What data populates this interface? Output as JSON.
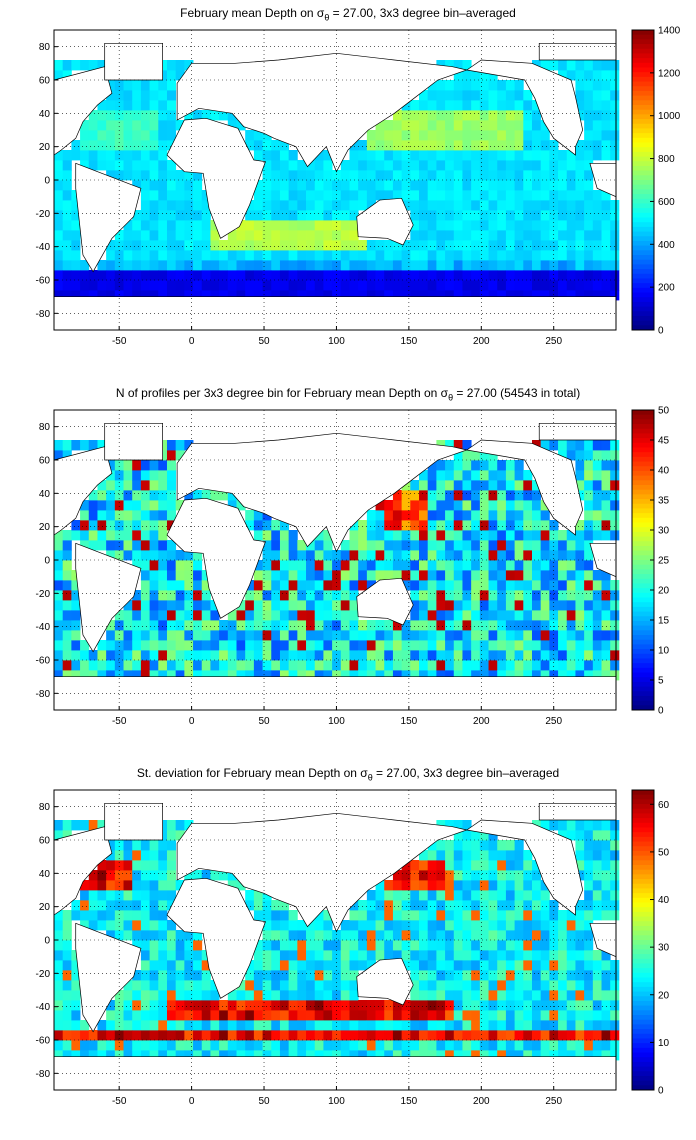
{
  "panels": [
    {
      "title": "February mean Depth on",
      "title_suffix": " = 27.00, 3x3 degree bin–averaged",
      "sigma": "σ",
      "sigma_sub": "θ"
    },
    {
      "title": "N of profiles per 3x3 degree bin for February mean Depth on",
      "title_suffix": " = 27.00 (54543 in total)",
      "sigma": "σ",
      "sigma_sub": "θ"
    },
    {
      "title": "St. deviation for February mean Depth on",
      "title_suffix": " = 27.00, 3x3 degree bin–averaged",
      "sigma": "σ",
      "sigma_sub": "θ"
    }
  ],
  "chart_data": [
    {
      "type": "heatmap",
      "title": "February mean Depth on σθ = 27.00, 3x3 degree bin–averaged",
      "xlim": [
        -95,
        293
      ],
      "ylim": [
        -90,
        90
      ],
      "x_ticks": [
        -50,
        0,
        50,
        100,
        150,
        200,
        250
      ],
      "y_ticks": [
        80,
        60,
        40,
        20,
        0,
        -20,
        -40,
        -60,
        -80
      ],
      "colorbar": {
        "min": 0,
        "max": 1400,
        "ticks": [
          1400,
          1200,
          1000,
          800,
          600,
          400,
          200,
          0
        ]
      },
      "colormap": "jet",
      "grid": true,
      "bin_size_deg": 3
    },
    {
      "type": "heatmap",
      "title": "N of profiles per 3x3 degree bin for February mean Depth on σθ = 27.00 (54543 in total)",
      "xlim": [
        -95,
        293
      ],
      "ylim": [
        -90,
        90
      ],
      "x_ticks": [
        -50,
        0,
        50,
        100,
        150,
        200,
        250
      ],
      "y_ticks": [
        80,
        60,
        40,
        20,
        0,
        -20,
        -40,
        -60,
        -80
      ],
      "colorbar": {
        "min": 0,
        "max": 50,
        "ticks": [
          50,
          45,
          40,
          35,
          30,
          25,
          20,
          15,
          10,
          5,
          0
        ]
      },
      "colormap": "jet",
      "grid": true,
      "total_profiles": 54543,
      "bin_size_deg": 3
    },
    {
      "type": "heatmap",
      "title": "St. deviation for February mean Depth on σθ = 27.00, 3x3 degree bin–averaged",
      "xlim": [
        -95,
        293
      ],
      "ylim": [
        -90,
        90
      ],
      "x_ticks": [
        -50,
        0,
        50,
        100,
        150,
        200,
        250
      ],
      "y_ticks": [
        80,
        60,
        40,
        20,
        0,
        -20,
        -40,
        -60,
        -80
      ],
      "colorbar": {
        "min": 0,
        "max": 63,
        "ticks": [
          60,
          50,
          40,
          30,
          20,
          10,
          0
        ]
      },
      "colormap": "jet",
      "grid": true,
      "bin_size_deg": 3
    }
  ]
}
